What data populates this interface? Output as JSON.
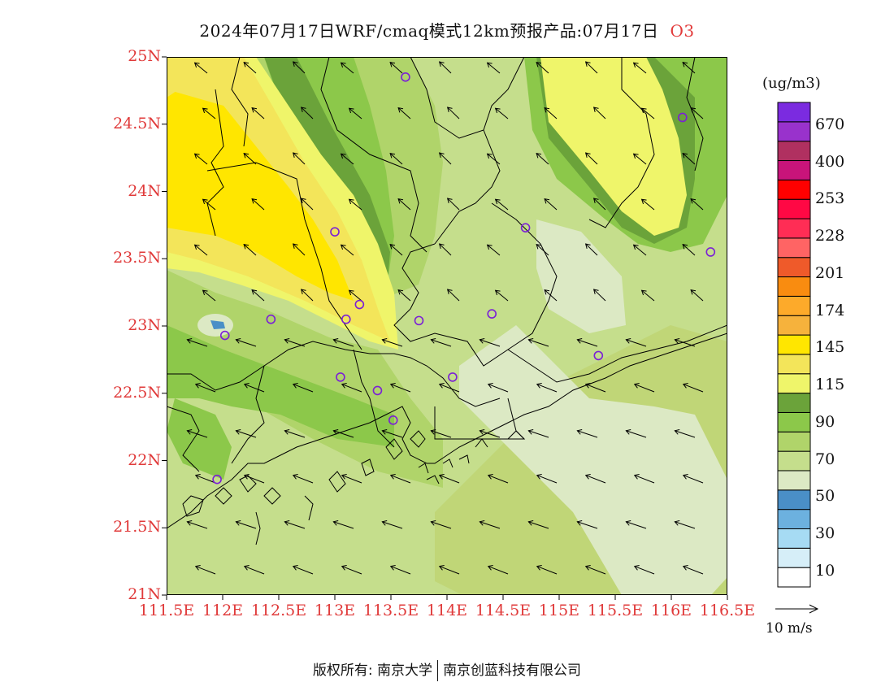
{
  "title": {
    "text": "2024年07月17日WRF/cmaq模式12km预报产品:07月17日",
    "species": "O3",
    "species_color": "#e23b3b"
  },
  "map": {
    "lat_labels": [
      "25N",
      "24.5N",
      "24N",
      "23.5N",
      "23N",
      "22.5N",
      "22N",
      "21.5N",
      "21N"
    ],
    "lon_labels": [
      "111.5E",
      "112E",
      "112.5E",
      "113E",
      "113.5E",
      "114E",
      "114.5E",
      "115E",
      "115.5E",
      "116E",
      "116.5E"
    ],
    "label_color": "#e03a3a"
  },
  "legend": {
    "unit": "(ug/m3)",
    "colors": [
      "#ffffff",
      "#d6eef8",
      "#a6dbf3",
      "#6cb1df",
      "#4a8fc7",
      "#dce9c4",
      "#c5de8c",
      "#b0d46a",
      "#8cc84a",
      "#6ba33a",
      "#eff56a",
      "#f3e55a",
      "#ffe600",
      "#f6b23c",
      "#fdaa2a",
      "#f98c10",
      "#ef5a2a",
      "#ff6464",
      "#ff2d55",
      "#ff0844",
      "#ff0000",
      "#c8147a",
      "#b03060",
      "#9932cc",
      "#7b2be0"
    ],
    "level_labels": [
      "10",
      "30",
      "50",
      "70",
      "90",
      "115",
      "145",
      "174",
      "201",
      "228",
      "253",
      "400",
      "670"
    ]
  },
  "vector_key": {
    "label": "10  m/s"
  },
  "footer": {
    "left": "版权所有: 南京大学",
    "right": "南京创蓝科技有限公司"
  },
  "stations": [
    {
      "lon": 113.63,
      "lat": 24.85
    },
    {
      "lon": 116.1,
      "lat": 24.55
    },
    {
      "lon": 113.0,
      "lat": 23.7
    },
    {
      "lon": 114.7,
      "lat": 23.73
    },
    {
      "lon": 116.35,
      "lat": 23.55
    },
    {
      "lon": 112.43,
      "lat": 23.05
    },
    {
      "lon": 113.1,
      "lat": 23.05
    },
    {
      "lon": 113.22,
      "lat": 23.16
    },
    {
      "lon": 113.75,
      "lat": 23.04
    },
    {
      "lon": 114.4,
      "lat": 23.09
    },
    {
      "lon": 112.02,
      "lat": 22.93
    },
    {
      "lon": 113.05,
      "lat": 22.62
    },
    {
      "lon": 113.38,
      "lat": 22.52
    },
    {
      "lon": 114.05,
      "lat": 22.62
    },
    {
      "lon": 115.35,
      "lat": 22.78
    },
    {
      "lon": 113.52,
      "lat": 22.3
    },
    {
      "lon": 111.95,
      "lat": 21.86
    }
  ]
}
